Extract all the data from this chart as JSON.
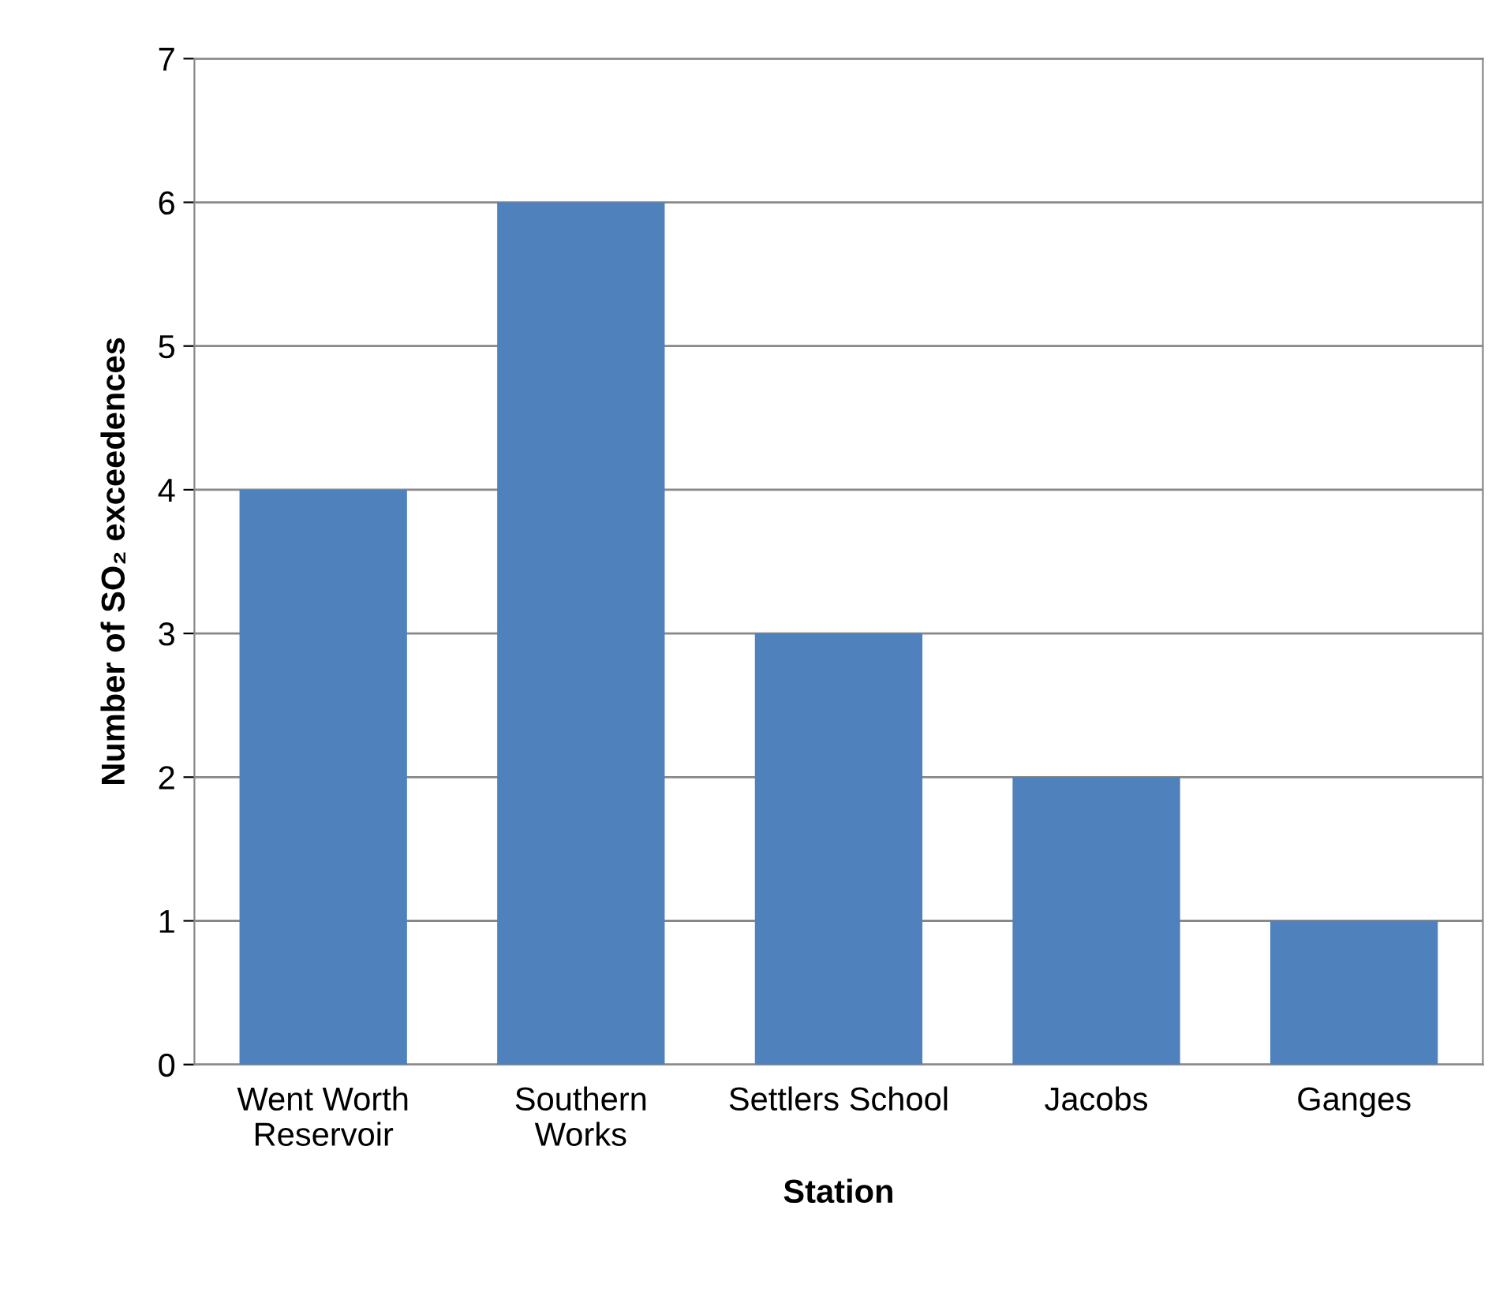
{
  "chart_data": {
    "type": "bar",
    "xlabel": "Station",
    "ylabel": "Number of SO₂ exceedences",
    "categories": [
      "Went Worth\nReservoir",
      "Southern\nWorks",
      "Settlers School",
      "Jacobs",
      "Ganges"
    ],
    "values": [
      4,
      6,
      3,
      2,
      1
    ],
    "color": "#4f81bd",
    "ylim": [
      0,
      7
    ],
    "yticks": [
      0,
      1,
      2,
      3,
      4,
      5,
      6,
      7
    ],
    "grid": "y",
    "legend": false
  }
}
